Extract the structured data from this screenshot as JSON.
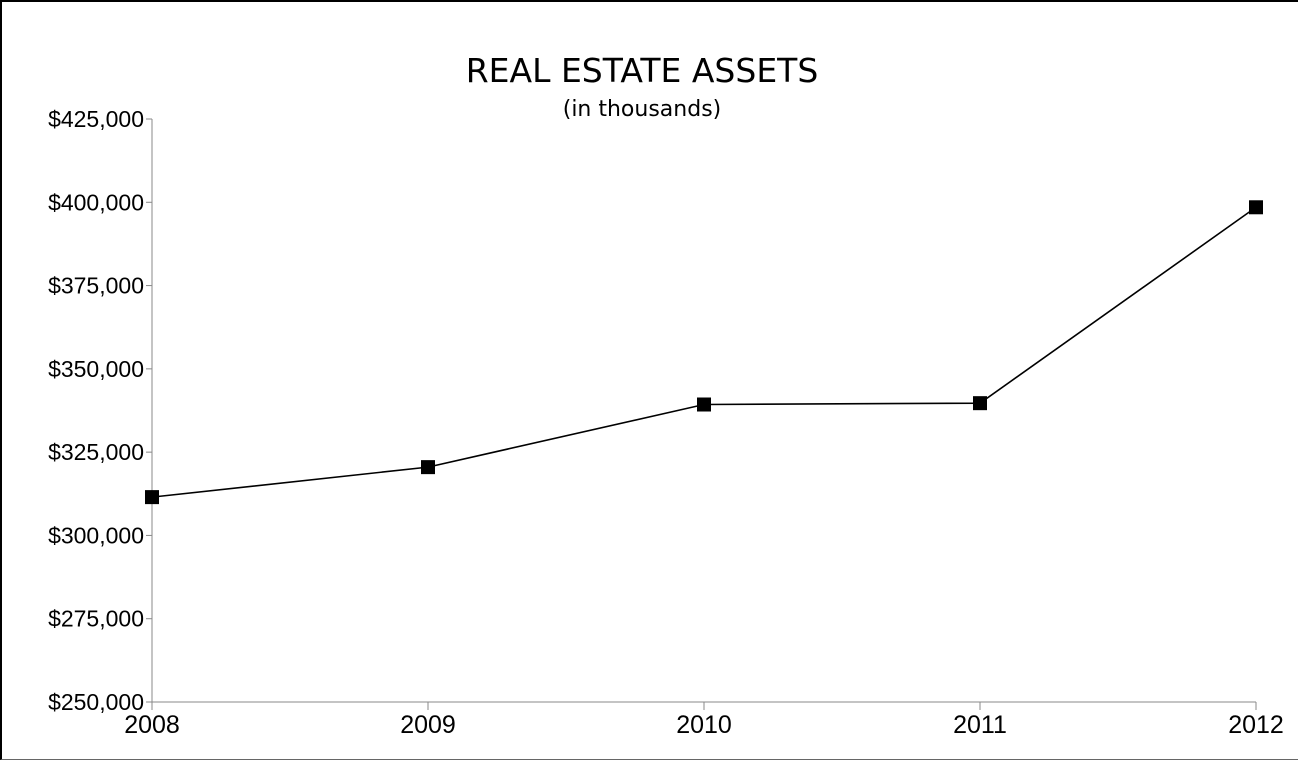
{
  "chart_data": {
    "type": "line",
    "title": "REAL ESTATE ASSETS",
    "subtitle": "(in thousands)",
    "xlabel": "",
    "ylabel": "",
    "categories": [
      "2008",
      "2009",
      "2010",
      "2011",
      "2012"
    ],
    "series": [
      {
        "values": [
          311500,
          320500,
          339300,
          339700,
          398500
        ]
      }
    ],
    "ylim": [
      250000,
      425000
    ],
    "yticks": [
      250000,
      275000,
      300000,
      325000,
      350000,
      375000,
      400000,
      425000
    ],
    "ytick_labels": [
      "$250,000",
      "$275,000",
      "$300,000",
      "$325,000",
      "$350,000",
      "$375,000",
      "$400,000",
      "$425,000"
    ],
    "grid": false,
    "marker": "square",
    "line_color": "#000000",
    "marker_color": "#000000"
  }
}
